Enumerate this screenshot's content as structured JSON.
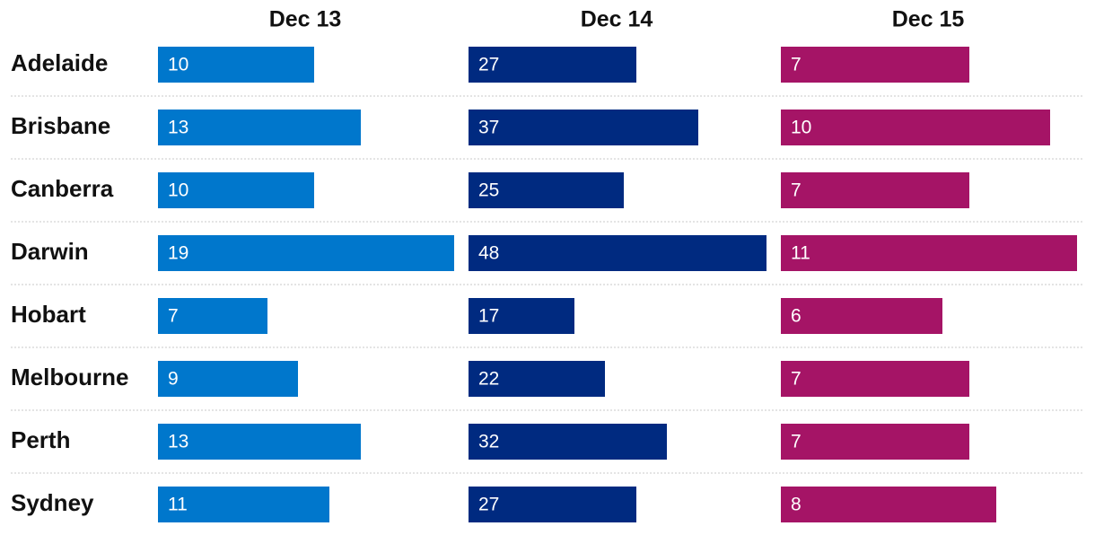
{
  "chart_data": {
    "type": "bar",
    "orientation": "horizontal",
    "layout": "small-multiples-by-column",
    "categories": [
      "Adelaide",
      "Brisbane",
      "Canberra",
      "Darwin",
      "Hobart",
      "Melbourne",
      "Perth",
      "Sydney"
    ],
    "series": [
      {
        "name": "Dec 13",
        "color": "#0077cc",
        "values": [
          10,
          13,
          10,
          19,
          7,
          9,
          13,
          11
        ]
      },
      {
        "name": "Dec 14",
        "color": "#002a80",
        "values": [
          27,
          37,
          25,
          48,
          17,
          22,
          32,
          27
        ]
      },
      {
        "name": "Dec 15",
        "color": "#a51466",
        "values": [
          7,
          10,
          7,
          11,
          6,
          7,
          7,
          8
        ]
      }
    ],
    "data_labels": true,
    "grid": false,
    "row_dividers": "dotted"
  }
}
